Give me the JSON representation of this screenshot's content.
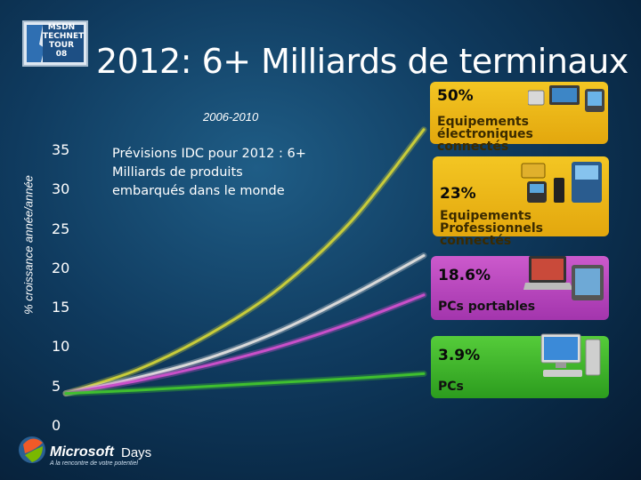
{
  "slide": {
    "title": "2012: 6+ Milliards de terminaux",
    "logo_text": "MSDN TECHNET TOUR 08",
    "note": "Prévisions IDC pour 2012 : 6+ Milliards de produits embarqués dans le monde",
    "brand": {
      "name": "Microsoft",
      "days": "Days",
      "tagline": "A la rencontre de votre potentiel"
    }
  },
  "chart_data": {
    "type": "line",
    "title": "2006-2010",
    "ylabel": "% croissance année/année",
    "ylim": [
      0,
      35
    ],
    "yticks": [
      "0",
      "5",
      "10",
      "15",
      "20",
      "25",
      "30",
      "35"
    ],
    "x": [
      0,
      0.2,
      0.4,
      0.6,
      0.8,
      1.0
    ],
    "series": [
      {
        "name": "Equipements électroniques connectés",
        "pct": "50%",
        "color": "#c8cc3a",
        "values": [
          4,
          7,
          11.5,
          17.5,
          26,
          37.5
        ]
      },
      {
        "name": "Equipements Professionnels connectés",
        "pct": "23%",
        "color": "#d9d9d9",
        "values": [
          4,
          6,
          8.5,
          12,
          16.5,
          21.5
        ]
      },
      {
        "name": "PCs portables",
        "pct": "18.6%",
        "color": "#c94fc9",
        "values": [
          4,
          5.6,
          7.6,
          10,
          13,
          16.5
        ]
      },
      {
        "name": "PCs",
        "pct": "3.9%",
        "color": "#3fbf2f",
        "values": [
          4,
          4.4,
          4.9,
          5.4,
          5.9,
          6.5
        ]
      }
    ]
  },
  "colors": {
    "background": "#0f3a5e",
    "yellow_card": "#f3c623",
    "purple_card": "#b543bd",
    "green_card": "#3fb82a"
  }
}
